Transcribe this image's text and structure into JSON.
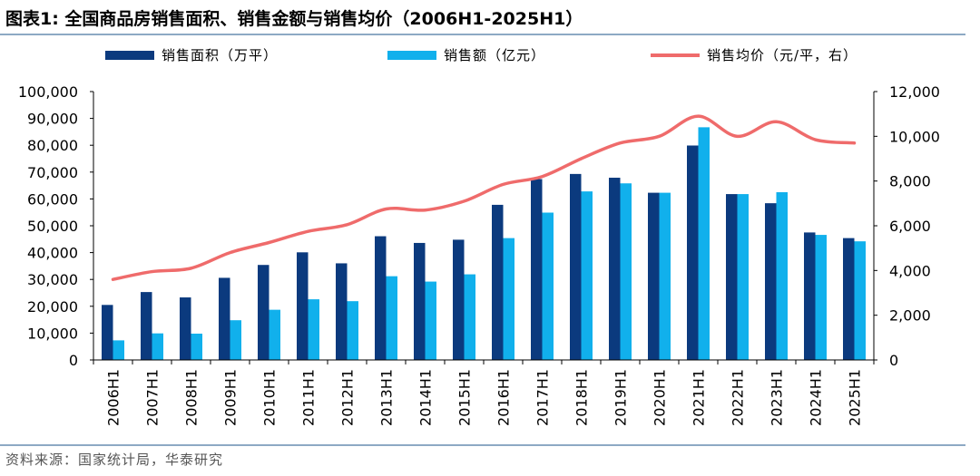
{
  "header": {
    "title": "图表1:  全国商品房销售面积、销售金额与销售均价（2006H1-2025H1）"
  },
  "footer": {
    "source": "资料来源：国家统计局，华泰研究"
  },
  "colors": {
    "area": "#0b3a7e",
    "amount": "#11b0ec",
    "price": "#ef6b6b",
    "rule": "#8da9c4"
  },
  "chart_data": {
    "type": "bar",
    "categories": [
      "2006H1",
      "2007H1",
      "2008H1",
      "2009H1",
      "2010H1",
      "2011H1",
      "2012H1",
      "2013H1",
      "2014H1",
      "2015H1",
      "2016H1",
      "2017H1",
      "2018H1",
      "2019H1",
      "2020H1",
      "2021H1",
      "2022H1",
      "2023H1",
      "2024H1",
      "2025H1"
    ],
    "series": [
      {
        "name": "销售面积（万平）",
        "type": "bar",
        "axis": "left",
        "values": [
          20500,
          25300,
          23300,
          30600,
          35400,
          40100,
          36000,
          46100,
          43600,
          44800,
          57800,
          67400,
          69300,
          67900,
          62300,
          79900,
          61800,
          58400,
          47500,
          45400
        ]
      },
      {
        "name": "销售额（亿元）",
        "type": "bar",
        "axis": "left",
        "values": [
          7300,
          9900,
          9800,
          14800,
          18700,
          22600,
          21900,
          31200,
          29200,
          31900,
          45400,
          54900,
          62800,
          65800,
          62300,
          86700,
          61800,
          62500,
          46600,
          44200
        ]
      },
      {
        "name": "销售均价（元/平，右）",
        "type": "line",
        "axis": "right",
        "values": [
          3600,
          3950,
          4100,
          4800,
          5250,
          5750,
          6050,
          6750,
          6700,
          7100,
          7850,
          8200,
          9000,
          9700,
          10000,
          10900,
          10000,
          10650,
          9850,
          9700
        ]
      }
    ],
    "y_left": {
      "min": 0,
      "max": 100000,
      "ticks": [
        "0",
        "10,000",
        "20,000",
        "30,000",
        "40,000",
        "50,000",
        "60,000",
        "70,000",
        "80,000",
        "90,000",
        "100,000"
      ]
    },
    "y_right": {
      "min": 0,
      "max": 12000,
      "ticks": [
        "0",
        "2,000",
        "4,000",
        "6,000",
        "8,000",
        "10,000",
        "12,000"
      ]
    },
    "legend": "top",
    "grid": false
  }
}
